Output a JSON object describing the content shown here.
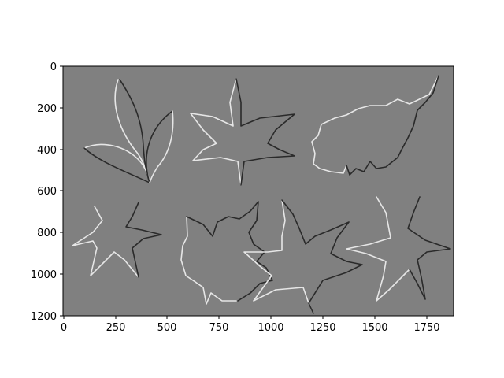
{
  "figure": {
    "background_color": "#ffffff",
    "axes_background": "#808080",
    "highlight_color": "#e6e6e6",
    "shadow_color": "#2a2a2a",
    "image_description_kind": "embossed leaf silhouettes",
    "x_ticks": [
      "0",
      "250",
      "500",
      "750",
      "1000",
      "1250",
      "1500",
      "1750"
    ],
    "x_tick_values": [
      0,
      250,
      500,
      750,
      1000,
      1250,
      1500,
      1750
    ],
    "y_ticks": [
      "0",
      "200",
      "400",
      "600",
      "800",
      "1000",
      "1200"
    ],
    "y_tick_values": [
      0,
      200,
      400,
      600,
      800,
      1000,
      1200
    ],
    "x_range": [
      0,
      1880
    ],
    "y_range": [
      1200,
      0
    ]
  }
}
